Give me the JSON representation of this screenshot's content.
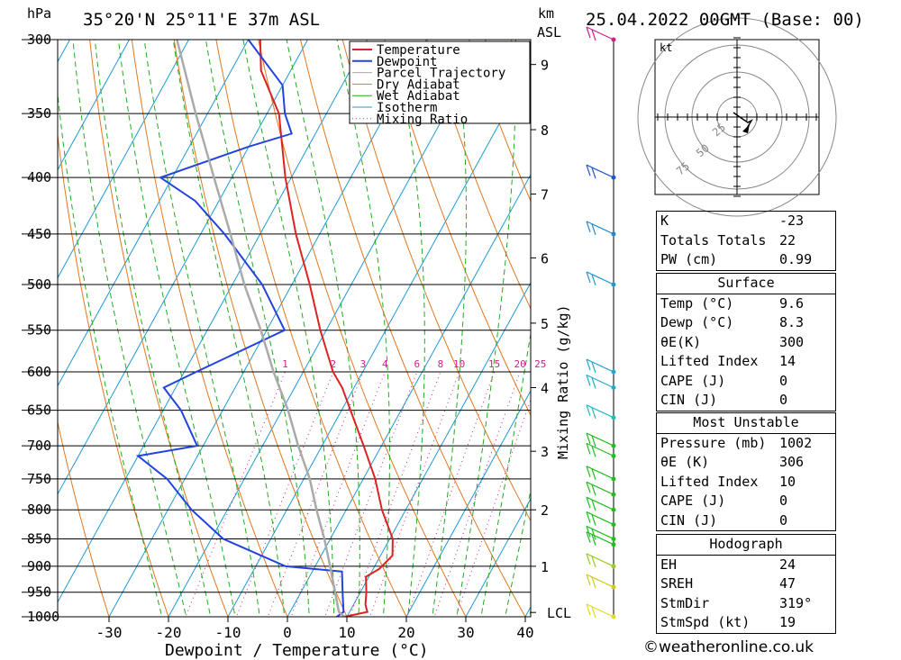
{
  "header": {
    "pressure_unit": "hPa",
    "location": "35°20'N  25°11'E  37m  ASL",
    "height_unit_km": "km",
    "height_unit_asl": "ASL",
    "datetime": "25.04.2022  00GMT  (Base: 00)"
  },
  "chart_data": {
    "type": "skew-t",
    "xlabel": "Dewpoint / Temperature (°C)",
    "ylabel": "hPa",
    "right_axis_label": "Mixing Ratio (g/kg)",
    "xlim": [
      -40,
      40
    ],
    "pressure_range": [
      1000,
      300
    ],
    "x_ticks": [
      -30,
      -20,
      -10,
      0,
      10,
      20,
      30,
      40
    ],
    "pressure_levels": [
      300,
      350,
      400,
      450,
      500,
      550,
      600,
      650,
      700,
      750,
      800,
      850,
      900,
      950,
      1000
    ],
    "km_ticks": [
      {
        "km": "9",
        "p": 316
      },
      {
        "km": "8",
        "p": 362
      },
      {
        "km": "7",
        "p": 414
      },
      {
        "km": "6",
        "p": 473
      },
      {
        "km": "5",
        "p": 542
      },
      {
        "km": "4",
        "p": 620
      },
      {
        "km": "3",
        "p": 708
      },
      {
        "km": "2",
        "p": 800
      },
      {
        "km": "1",
        "p": 900
      },
      {
        "km": "LCL",
        "p": 991
      }
    ],
    "mixing_ratio_labels": [
      "1",
      "2",
      "3",
      "4",
      "6",
      "8",
      "10",
      "15",
      "20",
      "25"
    ],
    "legend": [
      "Temperature",
      "Dewpoint",
      "Parcel Trajectory",
      "Dry Adiabat",
      "Wet Adiabat",
      "Isotherm",
      "Mixing Ratio"
    ],
    "legend_position": "top-right",
    "series": [
      {
        "name": "Temperature",
        "color": "#dd2222",
        "points": [
          [
            1000,
            9.6
          ],
          [
            990,
            13
          ],
          [
            975,
            12
          ],
          [
            950,
            11
          ],
          [
            920,
            9.5
          ],
          [
            905,
            11
          ],
          [
            880,
            12
          ],
          [
            850,
            10.5
          ],
          [
            800,
            6
          ],
          [
            750,
            2
          ],
          [
            700,
            -3
          ],
          [
            650,
            -8.5
          ],
          [
            620,
            -12
          ],
          [
            600,
            -15
          ],
          [
            550,
            -21
          ],
          [
            500,
            -27
          ],
          [
            450,
            -34
          ],
          [
            400,
            -41
          ],
          [
            350,
            -48
          ],
          [
            320,
            -55
          ],
          [
            300,
            -58
          ]
        ]
      },
      {
        "name": "Dewpoint",
        "color": "#2244dd",
        "points": [
          [
            1000,
            8.3
          ],
          [
            990,
            9
          ],
          [
            950,
            7
          ],
          [
            910,
            5
          ],
          [
            900,
            -5
          ],
          [
            850,
            -18
          ],
          [
            800,
            -26
          ],
          [
            750,
            -33
          ],
          [
            715,
            -40
          ],
          [
            700,
            -31
          ],
          [
            650,
            -37
          ],
          [
            620,
            -42
          ],
          [
            600,
            -38
          ],
          [
            550,
            -27
          ],
          [
            500,
            -35
          ],
          [
            450,
            -46
          ],
          [
            420,
            -54
          ],
          [
            400,
            -62
          ],
          [
            375,
            -50
          ],
          [
            365,
            -44
          ],
          [
            350,
            -47
          ],
          [
            330,
            -50
          ],
          [
            300,
            -60
          ]
        ]
      },
      {
        "name": "Parcel Trajectory",
        "color": "#aaaaaa",
        "points": [
          [
            1000,
            9.6
          ],
          [
            990,
            8.2
          ],
          [
            900,
            2.5
          ],
          [
            850,
            -1
          ],
          [
            800,
            -5
          ],
          [
            750,
            -9
          ],
          [
            700,
            -14
          ],
          [
            650,
            -19
          ],
          [
            600,
            -25
          ],
          [
            550,
            -31
          ],
          [
            500,
            -38
          ],
          [
            450,
            -45
          ],
          [
            400,
            -53
          ],
          [
            350,
            -62
          ],
          [
            300,
            -72
          ]
        ]
      }
    ],
    "wind_barbs": [
      {
        "p": 300,
        "color": "#cc2288"
      },
      {
        "p": 400,
        "color": "#2255cc"
      },
      {
        "p": 450,
        "color": "#2288cc"
      },
      {
        "p": 500,
        "color": "#2299cc"
      },
      {
        "p": 600,
        "color": "#22aacc"
      },
      {
        "p": 620,
        "color": "#22aacc"
      },
      {
        "p": 660,
        "color": "#22bbbb"
      },
      {
        "p": 700,
        "color": "#22bb22"
      },
      {
        "p": 715,
        "color": "#22bb22"
      },
      {
        "p": 750,
        "color": "#22bb22"
      },
      {
        "p": 775,
        "color": "#22bb22"
      },
      {
        "p": 800,
        "color": "#22bb22"
      },
      {
        "p": 825,
        "color": "#22bb22"
      },
      {
        "p": 850,
        "color": "#22bb22"
      },
      {
        "p": 860,
        "color": "#22bb22"
      },
      {
        "p": 900,
        "color": "#99cc22"
      },
      {
        "p": 940,
        "color": "#cccc22"
      },
      {
        "p": 1000,
        "color": "#dddd22"
      }
    ],
    "hodograph": {
      "unit": "kt",
      "rings": [
        "25",
        "50",
        "75"
      ]
    }
  },
  "indices": {
    "top": [
      {
        "label": "K",
        "value": "-23"
      },
      {
        "label": "Totals Totals",
        "value": "22"
      },
      {
        "label": "PW (cm)",
        "value": "0.99"
      }
    ],
    "surface": {
      "title": "Surface",
      "rows": [
        {
          "label": "Temp (°C)",
          "value": "9.6"
        },
        {
          "label": "Dewp (°C)",
          "value": "8.3"
        },
        {
          "label": "θE(K)",
          "value": "300"
        },
        {
          "label": "Lifted Index",
          "value": "14"
        },
        {
          "label": "CAPE (J)",
          "value": "0"
        },
        {
          "label": "CIN (J)",
          "value": "0"
        }
      ]
    },
    "most_unstable": {
      "title": "Most Unstable",
      "rows": [
        {
          "label": "Pressure (mb)",
          "value": "1002"
        },
        {
          "label": "θE (K)",
          "value": "306"
        },
        {
          "label": "Lifted Index",
          "value": "10"
        },
        {
          "label": "CAPE (J)",
          "value": "0"
        },
        {
          "label": "CIN (J)",
          "value": "0"
        }
      ]
    },
    "hodograph": {
      "title": "Hodograph",
      "rows": [
        {
          "label": "EH",
          "value": "24"
        },
        {
          "label": "SREH",
          "value": "47"
        },
        {
          "label": "StmDir",
          "value": "319°"
        },
        {
          "label": "StmSpd (kt)",
          "value": "19"
        }
      ]
    }
  },
  "footer": {
    "copyright": "©weatheronline.co.uk"
  },
  "colors": {
    "temperature": "#dd2222",
    "dewpoint": "#2244dd",
    "parcel": "#aaaaaa",
    "dry_adiabat": "#e07820",
    "wet_adiabat": "#22aa22",
    "isotherm": "#1e9ad6",
    "mixing_ratio": "#cc2288"
  }
}
